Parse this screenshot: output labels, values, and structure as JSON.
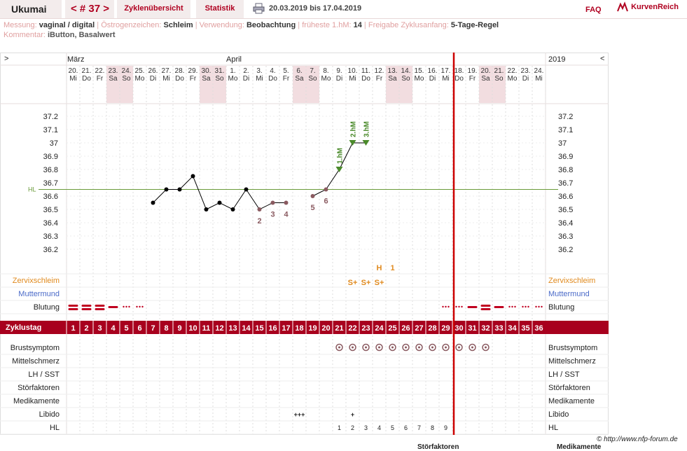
{
  "header": {
    "user": "Ukumai",
    "cycle_label": "< # 37 >",
    "tab_overview": "Zyklenübersicht",
    "tab_stats": "Statistik",
    "print_icon": "printer-icon",
    "date_range": "20.03.2019 bis 17.04.2019",
    "faq": "FAQ",
    "brand": "KurvenReich",
    "brand_icon": "kurvenreich-logo-icon"
  },
  "meta": {
    "messung_l": "Messung:",
    "messung_v": "vaginal / digital",
    "oestro_l": "Östrogenzeichen:",
    "oestro_v": "Schleim",
    "verw_l": "Verwendung:",
    "verw_v": "Beobachtung",
    "hm_l": "früheste 1.hM:",
    "hm_v": "14",
    "freig_l": "Freigabe Zyklusanfang:",
    "freig_v": "5-Tage-Regel",
    "komm_l": "Kommentar:",
    "komm_v": "iButton, Basalwert"
  },
  "chart_data": {
    "type": "line",
    "month_left": "März",
    "month_mid": "April",
    "year": "2019",
    "nav_left": ">",
    "nav_right": "<",
    "days": [
      {
        "d": "20.",
        "w": "Mi",
        "we": false
      },
      {
        "d": "21.",
        "w": "Do",
        "we": false
      },
      {
        "d": "22.",
        "w": "Fr",
        "we": false
      },
      {
        "d": "23.",
        "w": "Sa",
        "we": true
      },
      {
        "d": "24.",
        "w": "So",
        "we": true
      },
      {
        "d": "25.",
        "w": "Mo",
        "we": false
      },
      {
        "d": "26.",
        "w": "Di",
        "we": false
      },
      {
        "d": "27.",
        "w": "Mi",
        "we": false
      },
      {
        "d": "28.",
        "w": "Do",
        "we": false
      },
      {
        "d": "29.",
        "w": "Fr",
        "we": false
      },
      {
        "d": "30.",
        "w": "Sa",
        "we": true
      },
      {
        "d": "31.",
        "w": "So",
        "we": true
      },
      {
        "d": "1.",
        "w": "Mo",
        "we": false
      },
      {
        "d": "2.",
        "w": "Di",
        "we": false
      },
      {
        "d": "3.",
        "w": "Mi",
        "we": false
      },
      {
        "d": "4.",
        "w": "Do",
        "we": false
      },
      {
        "d": "5.",
        "w": "Fr",
        "we": false
      },
      {
        "d": "6.",
        "w": "Sa",
        "we": true
      },
      {
        "d": "7.",
        "w": "So",
        "we": true
      },
      {
        "d": "8.",
        "w": "Mo",
        "we": false
      },
      {
        "d": "9.",
        "w": "Di",
        "we": false
      },
      {
        "d": "10.",
        "w": "Mi",
        "we": false
      },
      {
        "d": "11.",
        "w": "Do",
        "we": false
      },
      {
        "d": "12.",
        "w": "Fr",
        "we": false
      },
      {
        "d": "13.",
        "w": "Sa",
        "we": true
      },
      {
        "d": "14.",
        "w": "So",
        "we": true
      },
      {
        "d": "15.",
        "w": "Mo",
        "we": false
      },
      {
        "d": "16.",
        "w": "Di",
        "we": false
      },
      {
        "d": "17.",
        "w": "Mi",
        "we": false
      },
      {
        "d": "18.",
        "w": "Do",
        "we": false
      },
      {
        "d": "19.",
        "w": "Fr",
        "we": false
      },
      {
        "d": "20.",
        "w": "Sa",
        "we": true
      },
      {
        "d": "21.",
        "w": "So",
        "we": true
      },
      {
        "d": "22.",
        "w": "Mo",
        "we": false
      },
      {
        "d": "23.",
        "w": "Di",
        "we": false
      },
      {
        "d": "24.",
        "w": "Mi",
        "we": false
      }
    ],
    "y_ticks": [
      "37.2",
      "37.1",
      "37",
      "36.9",
      "36.8",
      "36.7",
      "36.6",
      "36.5",
      "36.4",
      "36.3",
      "36.2"
    ],
    "ylim": [
      36.2,
      37.2
    ],
    "hl_label": "HL",
    "hl_value": 36.65,
    "temps": [
      null,
      null,
      null,
      null,
      null,
      null,
      36.55,
      36.65,
      36.65,
      36.75,
      36.5,
      36.55,
      36.5,
      36.65,
      36.5,
      36.55,
      36.55,
      null,
      36.6,
      36.65,
      36.8,
      37.0,
      37.0,
      null,
      null,
      null,
      null,
      null,
      null
    ],
    "low_labels": [
      {
        "day": 15,
        "t": "2"
      },
      {
        "day": 16,
        "t": "3"
      },
      {
        "day": 17,
        "t": "4"
      },
      {
        "day": 19,
        "t": "5"
      },
      {
        "day": 20,
        "t": "6"
      }
    ],
    "high_labels": [
      {
        "day": 21,
        "t": "1.hM"
      },
      {
        "day": 22,
        "t": "2.hM"
      },
      {
        "day": 23,
        "t": "3.hM"
      }
    ],
    "today_day": 29,
    "zervix_label": "Zervixschleim",
    "zervix": [
      {
        "day": 22,
        "t": "S+"
      },
      {
        "day": 23,
        "t": "S+"
      },
      {
        "day": 24,
        "t": "S+"
      }
    ],
    "peak": {
      "day": 24,
      "t": "H",
      "n": "1"
    },
    "mutter_label": "Muttermund",
    "blutung_label": "Blutung",
    "blutung": {
      "1": 3,
      "2": 3,
      "3": 3,
      "4": 2,
      "5": 1,
      "6": 1,
      "30": 1,
      "31": 2,
      "32": 3,
      "33": 2,
      "34": 1,
      "35": 1,
      "36": 1,
      "29": 1
    },
    "zyklus_label": "Zyklustag",
    "zyklustage": [
      "1",
      "2",
      "3",
      "4",
      "5",
      "6",
      "7",
      "8",
      "9",
      "10",
      "11",
      "12",
      "13",
      "14",
      "15",
      "16",
      "17",
      "18",
      "19",
      "20",
      "21",
      "22",
      "23",
      "24",
      "25",
      "26",
      "27",
      "28",
      "29",
      "30",
      "31",
      "32",
      "33",
      "34",
      "35",
      "36"
    ],
    "lower_rows": [
      "Brustsymptom",
      "Mittelschmerz",
      "LH / SST",
      "Störfaktoren",
      "Medikamente",
      "Libido",
      "HL"
    ],
    "brust_days": [
      21,
      22,
      23,
      24,
      25,
      26,
      27,
      28,
      29,
      30,
      31,
      32
    ],
    "libido": [
      {
        "day": 18,
        "t": "+++"
      },
      {
        "day": 22,
        "t": "+"
      }
    ],
    "hl_counts": [
      "1",
      "2",
      "3",
      "4",
      "5",
      "6",
      "7",
      "8",
      "9"
    ],
    "hl_start": 21
  },
  "footer": {
    "credit": "© http://www.nfp-forum.de",
    "stoer": "Störfaktoren",
    "medi": "Medikamente"
  }
}
